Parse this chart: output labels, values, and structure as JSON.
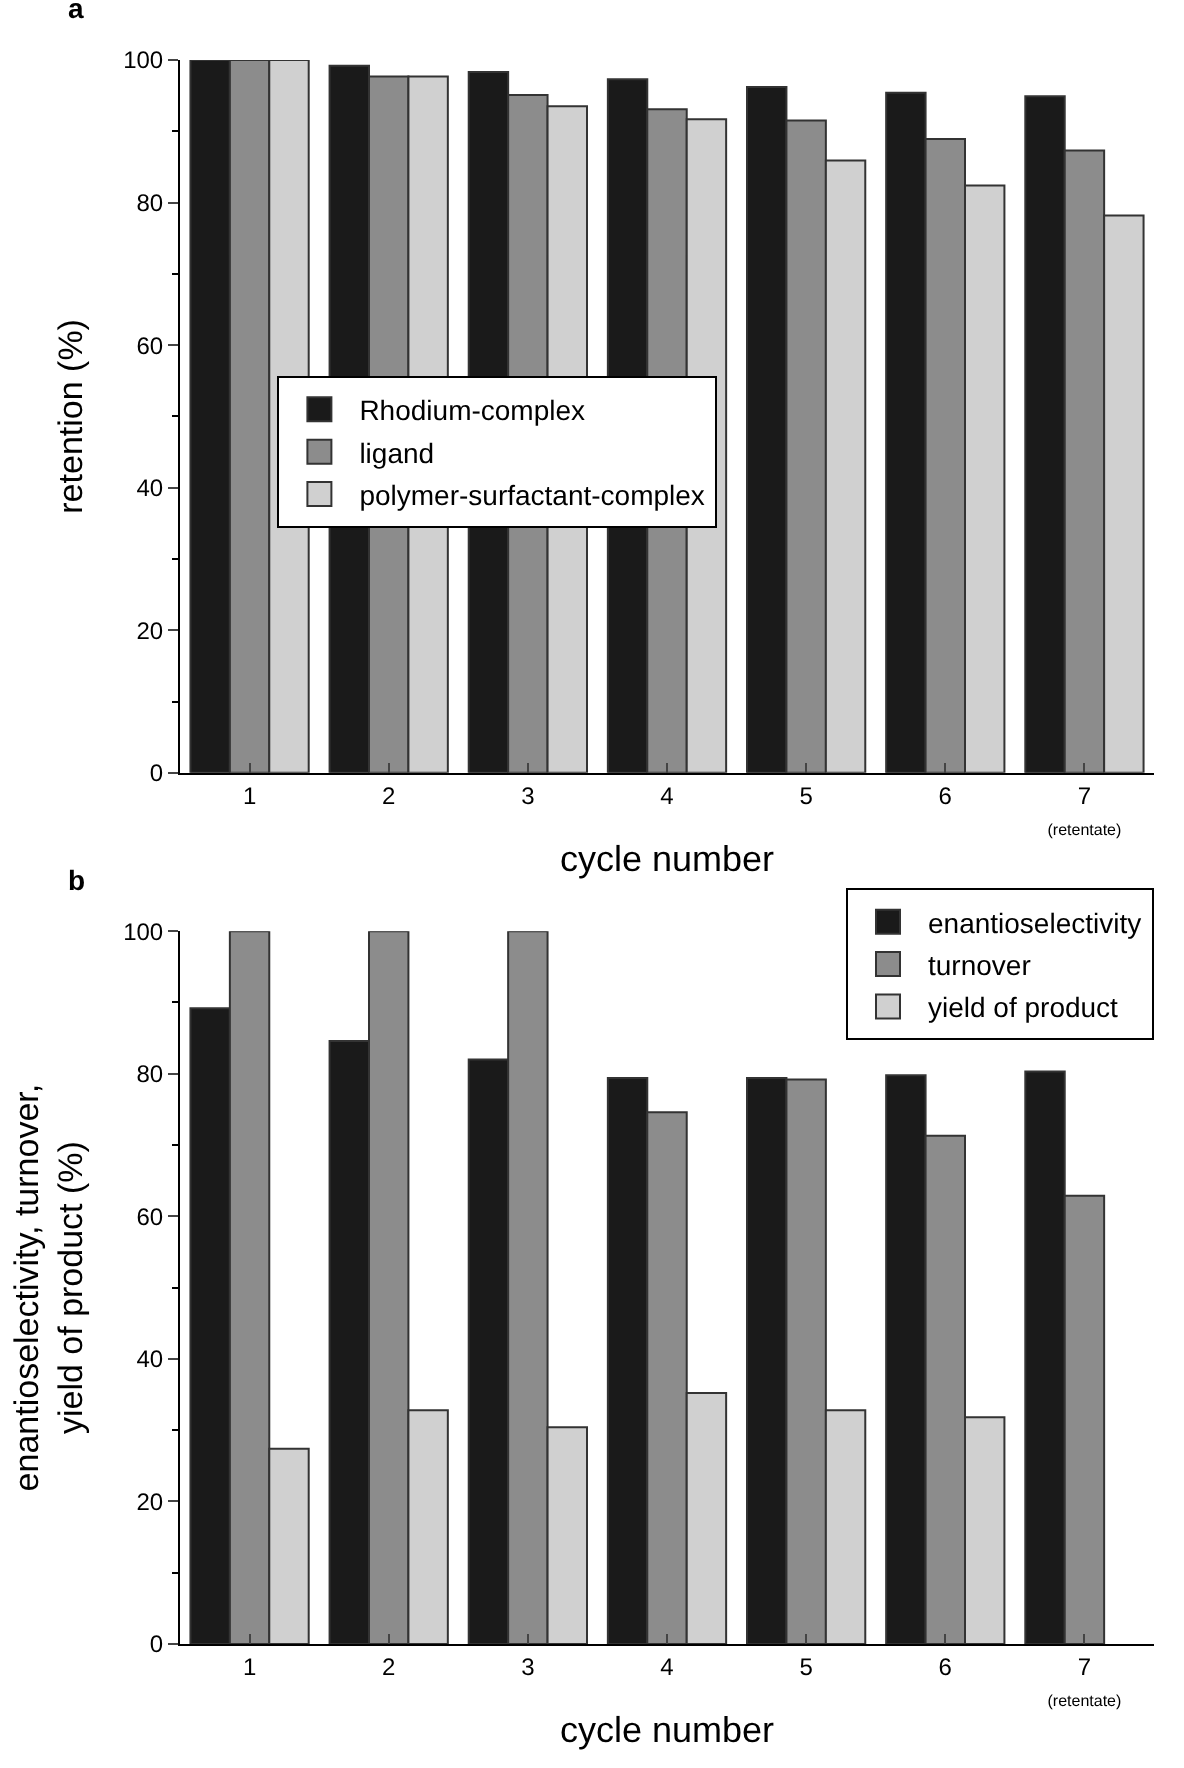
{
  "chart_data": [
    {
      "type": "bar",
      "title": "a",
      "xlabel": "cycle number",
      "ylabel": "retention (%)",
      "categories": [
        "1",
        "2",
        "3",
        "4",
        "5",
        "6",
        "7\n(retentate)"
      ],
      "series": [
        {
          "name": "Rhodium-complex",
          "color": "#1a1a1a",
          "values": [
            100,
            99.2,
            98.3,
            97.3,
            96.2,
            95.4,
            94.9
          ]
        },
        {
          "name": "ligand",
          "color": "#8c8c8c",
          "values": [
            100,
            97.7,
            95.1,
            93.1,
            91.5,
            88.9,
            87.3
          ]
        },
        {
          "name": "polymer-surfactant-complex",
          "color": "#d0d0d0",
          "values": [
            100,
            97.7,
            93.5,
            91.7,
            85.9,
            82.4,
            78.2
          ]
        }
      ],
      "ylim": [
        0,
        100
      ],
      "yticks": [
        0,
        20,
        40,
        60,
        80,
        100
      ],
      "legend": "left"
    },
    {
      "type": "bar",
      "title": "b",
      "xlabel": "cycle number",
      "ylabel": "enantioselectivity, turnover,\nyield of product (%)",
      "categories": [
        "1",
        "2",
        "3",
        "4",
        "5",
        "6",
        "7\n(retentate)"
      ],
      "series": [
        {
          "name": "enantioselectivity",
          "color": "#1a1a1a",
          "values": [
            89.2,
            84.6,
            82.0,
            79.4,
            79.4,
            79.8,
            80.3
          ]
        },
        {
          "name": "turnover",
          "color": "#8c8c8c",
          "values": [
            100,
            100,
            100,
            74.6,
            79.2,
            71.3,
            62.9
          ]
        },
        {
          "name": "yield of product",
          "color": "#d0d0d0",
          "values": [
            27.4,
            32.8,
            30.4,
            35.2,
            32.8,
            31.8,
            null
          ]
        }
      ],
      "ylim": [
        0,
        100
      ],
      "yticks": [
        0,
        20,
        40,
        60,
        80,
        100
      ],
      "legend": "top right"
    }
  ]
}
